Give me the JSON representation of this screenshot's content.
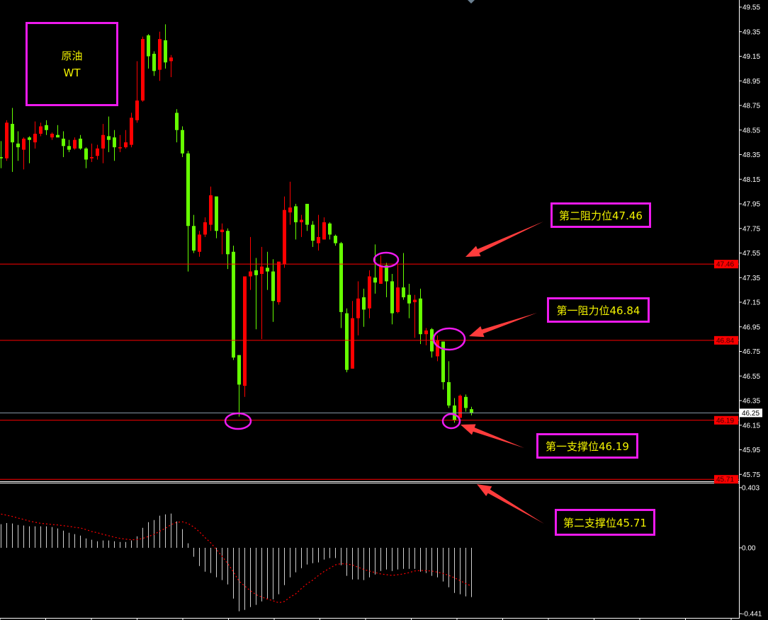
{
  "chart_data": {
    "type": "candlestick",
    "title_box": {
      "line1": "原油",
      "line2": "WT"
    },
    "price_axis": {
      "ylim": [
        45.71,
        49.55
      ],
      "ticks": [
        "49.55",
        "49.35",
        "49.15",
        "48.95",
        "48.75",
        "48.55",
        "48.35",
        "48.15",
        "47.95",
        "47.75",
        "47.55",
        "47.35",
        "47.15",
        "46.95",
        "46.75",
        "46.55",
        "46.35",
        "46.15",
        "45.95",
        "45.75"
      ]
    },
    "current_price": "46.25",
    "levels": [
      {
        "value": "47.46",
        "label": "第二阻力位47.46"
      },
      {
        "value": "46.84",
        "label": "第一阻力位46.84"
      },
      {
        "value": "46.19",
        "label": "第一支撑位46.19"
      },
      {
        "value": "45.71",
        "label": "第二支撑位45.71"
      }
    ],
    "colors": {
      "up": "#ff0000",
      "down": "#66ff00",
      "level_line": "#ff0000",
      "current_line": "#8a9aaa",
      "annotation": "#ee1aee",
      "label_text": "#f2f200",
      "arrow": "#ff3c3c",
      "macd_hist": "#d0d0d0",
      "macd_signal": "#ff0000"
    },
    "candles_ohlc": [
      [
        48.33,
        48.46,
        48.24,
        48.32
      ],
      [
        48.32,
        48.63,
        48.3,
        48.61
      ],
      [
        48.6,
        48.73,
        48.21,
        48.45
      ],
      [
        48.44,
        48.54,
        48.3,
        48.41
      ],
      [
        48.39,
        48.49,
        48.23,
        48.48
      ],
      [
        48.49,
        48.5,
        48.28,
        48.47
      ],
      [
        48.45,
        48.62,
        48.4,
        48.52
      ],
      [
        48.52,
        48.61,
        48.5,
        48.58
      ],
      [
        48.59,
        48.63,
        48.51,
        48.55
      ],
      [
        48.49,
        48.53,
        48.47,
        48.52
      ],
      [
        48.51,
        48.59,
        48.49,
        48.49
      ],
      [
        48.48,
        48.54,
        48.33,
        48.42
      ],
      [
        48.42,
        48.47,
        48.37,
        48.39
      ],
      [
        48.4,
        48.49,
        48.39,
        48.47
      ],
      [
        48.48,
        48.51,
        48.39,
        48.4
      ],
      [
        48.4,
        48.41,
        48.24,
        48.31
      ],
      [
        48.32,
        48.44,
        48.29,
        48.33
      ],
      [
        48.34,
        48.43,
        48.31,
        48.4
      ],
      [
        48.4,
        48.6,
        48.28,
        48.51
      ],
      [
        48.5,
        48.66,
        48.37,
        48.47
      ],
      [
        48.49,
        48.55,
        48.3,
        48.41
      ],
      [
        48.41,
        48.51,
        48.37,
        48.41
      ],
      [
        48.41,
        48.55,
        48.4,
        48.45
      ],
      [
        48.43,
        48.69,
        48.41,
        48.65
      ],
      [
        48.63,
        49.11,
        48.61,
        48.79
      ],
      [
        48.79,
        49.31,
        48.78,
        49.29
      ],
      [
        49.32,
        49.33,
        49.05,
        49.15
      ],
      [
        49.17,
        49.19,
        48.99,
        49.03
      ],
      [
        49.04,
        49.35,
        48.95,
        49.29
      ],
      [
        49.28,
        49.41,
        49.05,
        49.1
      ],
      [
        49.11,
        49.16,
        48.98,
        49.14
      ],
      [
        48.69,
        48.72,
        48.45,
        48.55
      ],
      [
        48.55,
        48.58,
        48.33,
        48.36
      ],
      [
        48.36,
        48.38,
        47.4,
        47.77
      ],
      [
        47.77,
        47.86,
        47.55,
        47.57
      ],
      [
        47.56,
        47.73,
        47.52,
        47.7
      ],
      [
        47.7,
        47.84,
        47.68,
        47.8
      ],
      [
        47.78,
        48.09,
        47.73,
        48.02
      ],
      [
        48.01,
        48.01,
        47.67,
        47.73
      ],
      [
        47.72,
        47.79,
        47.54,
        47.74
      ],
      [
        47.73,
        47.75,
        47.42,
        47.54
      ],
      [
        47.56,
        47.61,
        46.68,
        46.7
      ],
      [
        46.72,
        46.72,
        46.22,
        46.48
      ],
      [
        46.47,
        47.36,
        46.38,
        47.36
      ],
      [
        47.36,
        47.68,
        47.25,
        47.4
      ],
      [
        47.41,
        47.51,
        46.93,
        47.37
      ],
      [
        47.38,
        47.6,
        46.85,
        47.44
      ],
      [
        47.43,
        47.56,
        47.25,
        47.4
      ],
      [
        47.4,
        47.5,
        46.99,
        47.16
      ],
      [
        47.15,
        47.48,
        47.13,
        47.48
      ],
      [
        47.46,
        48.01,
        47.43,
        47.9
      ],
      [
        47.88,
        48.13,
        47.78,
        47.92
      ],
      [
        47.93,
        47.95,
        47.66,
        47.8
      ],
      [
        47.8,
        47.86,
        47.68,
        47.82
      ],
      [
        47.95,
        47.95,
        47.73,
        47.78
      ],
      [
        47.78,
        47.81,
        47.6,
        47.65
      ],
      [
        47.63,
        47.86,
        47.57,
        47.68
      ],
      [
        47.66,
        47.84,
        47.66,
        47.8
      ],
      [
        47.79,
        47.8,
        47.66,
        47.7
      ],
      [
        47.69,
        47.7,
        47.61,
        47.63
      ],
      [
        47.63,
        47.64,
        46.94,
        47.07
      ],
      [
        47.06,
        47.1,
        46.58,
        46.6
      ],
      [
        46.61,
        47.16,
        46.61,
        47.02
      ],
      [
        47.02,
        47.32,
        46.88,
        47.18
      ],
      [
        47.19,
        47.26,
        46.95,
        47.09
      ],
      [
        47.1,
        47.41,
        47.02,
        47.36
      ],
      [
        47.35,
        47.62,
        47.22,
        47.31
      ],
      [
        47.3,
        47.53,
        47.3,
        47.45
      ],
      [
        47.45,
        47.47,
        47.19,
        47.32
      ],
      [
        47.32,
        47.38,
        46.97,
        47.06
      ],
      [
        47.07,
        47.46,
        47.06,
        47.27
      ],
      [
        47.27,
        47.55,
        47.17,
        47.19
      ],
      [
        47.21,
        47.3,
        47.02,
        47.14
      ],
      [
        47.15,
        47.21,
        46.86,
        47.17
      ],
      [
        47.18,
        47.26,
        46.81,
        46.89
      ],
      [
        46.89,
        46.94,
        46.8,
        46.92
      ],
      [
        46.93,
        46.94,
        46.7,
        46.75
      ],
      [
        46.71,
        46.88,
        46.67,
        46.84
      ],
      [
        46.83,
        46.83,
        46.44,
        46.5
      ],
      [
        46.5,
        46.67,
        46.29,
        46.31
      ],
      [
        46.31,
        46.37,
        46.17,
        46.19
      ],
      [
        46.21,
        46.4,
        46.21,
        46.39
      ],
      [
        46.38,
        46.4,
        46.26,
        46.29
      ],
      [
        46.28,
        46.3,
        46.23,
        46.25
      ]
    ],
    "macd": {
      "axis_ticks": [
        "0.403",
        "0.00",
        "-0.441"
      ],
      "ylim": [
        -0.441,
        0.403
      ],
      "histogram": [
        0.158,
        0.166,
        0.163,
        0.153,
        0.149,
        0.144,
        0.144,
        0.144,
        0.144,
        0.139,
        0.13,
        0.115,
        0.101,
        0.092,
        0.082,
        0.063,
        0.054,
        0.044,
        0.049,
        0.049,
        0.044,
        0.039,
        0.039,
        0.049,
        0.077,
        0.134,
        0.172,
        0.186,
        0.215,
        0.224,
        0.229,
        0.177,
        0.125,
        0.03,
        -0.06,
        -0.122,
        -0.16,
        -0.169,
        -0.197,
        -0.216,
        -0.245,
        -0.34,
        -0.425,
        -0.416,
        -0.397,
        -0.382,
        -0.359,
        -0.34,
        -0.345,
        -0.311,
        -0.25,
        -0.198,
        -0.164,
        -0.136,
        -0.112,
        -0.103,
        -0.098,
        -0.079,
        -0.069,
        -0.069,
        -0.117,
        -0.188,
        -0.212,
        -0.212,
        -0.216,
        -0.198,
        -0.179,
        -0.155,
        -0.145,
        -0.155,
        -0.145,
        -0.141,
        -0.141,
        -0.141,
        -0.16,
        -0.169,
        -0.188,
        -0.198,
        -0.226,
        -0.264,
        -0.302,
        -0.311,
        -0.325,
        -0.33
      ],
      "signal": [
        0.226,
        0.218,
        0.21,
        0.199,
        0.19,
        0.179,
        0.171,
        0.164,
        0.16,
        0.156,
        0.153,
        0.148,
        0.144,
        0.137,
        0.133,
        0.122,
        0.109,
        0.101,
        0.09,
        0.081,
        0.071,
        0.063,
        0.058,
        0.054,
        0.055,
        0.063,
        0.076,
        0.09,
        0.111,
        0.131,
        0.155,
        0.171,
        0.174,
        0.163,
        0.139,
        0.107,
        0.068,
        0.033,
        -0.011,
        -0.058,
        -0.106,
        -0.161,
        -0.224,
        -0.256,
        -0.288,
        -0.314,
        -0.33,
        -0.343,
        -0.355,
        -0.368,
        -0.359,
        -0.33,
        -0.308,
        -0.272,
        -0.24,
        -0.216,
        -0.185,
        -0.158,
        -0.137,
        -0.114,
        -0.106,
        -0.109,
        -0.115,
        -0.13,
        -0.145,
        -0.156,
        -0.166,
        -0.175,
        -0.18,
        -0.185,
        -0.18,
        -0.175,
        -0.166,
        -0.155,
        -0.152,
        -0.153,
        -0.156,
        -0.163,
        -0.172,
        -0.185,
        -0.201,
        -0.22,
        -0.24,
        -0.256
      ]
    }
  }
}
